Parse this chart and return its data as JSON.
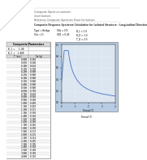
{
  "table_data": [
    [
      0.0,
      0.36
    ],
    [
      0.05,
      0.5
    ],
    [
      0.1,
      0.62
    ],
    [
      0.15,
      0.74
    ],
    [
      0.2,
      0.9
    ],
    [
      0.25,
      0.9
    ],
    [
      0.3,
      0.9
    ],
    [
      0.35,
      0.9
    ],
    [
      0.4,
      0.9
    ],
    [
      0.5,
      0.9
    ],
    [
      0.6,
      0.75
    ],
    [
      0.7,
      0.64
    ],
    [
      0.8,
      0.56
    ],
    [
      0.9,
      0.5
    ],
    [
      1.0,
      0.45
    ],
    [
      1.1,
      0.41
    ],
    [
      1.2,
      0.375
    ],
    [
      1.3,
      0.35
    ],
    [
      1.4,
      0.32
    ],
    [
      1.5,
      0.3
    ],
    [
      1.6,
      0.28
    ],
    [
      1.7,
      0.265
    ],
    [
      1.8,
      0.25
    ],
    [
      1.9,
      0.237
    ],
    [
      2.0,
      0.225
    ],
    [
      2.1,
      0.214
    ],
    [
      2.2,
      0.205
    ],
    [
      2.3,
      0.195
    ],
    [
      2.4,
      0.188
    ],
    [
      2.5,
      0.18
    ],
    [
      3.0,
      0.15
    ],
    [
      4.0,
      0.11
    ]
  ],
  "plot_xlim": [
    0,
    4.0
  ],
  "plot_ylim": [
    0,
    1.0
  ],
  "plot_xticks": [
    0,
    1,
    2,
    3,
    4
  ],
  "plot_yticks": [
    0.0,
    0.2,
    0.4,
    0.6,
    0.8,
    1.0
  ],
  "plot_xlabel": "Period (T)",
  "plot_line_color": "#4472C4",
  "plot_bg_color": "#dce6f1",
  "plot_outer_bg": "#b8cce4",
  "table_bg": "#ffffff",
  "table_header_bg": "#d9d9d9",
  "page_bg": "#ffffff",
  "border_color": "#808080",
  "text_color": "#000000",
  "header_texts": [
    "Composite Spectrum wsheets",
    "sheet buttons",
    "Reference Composite Spectrum Sheet for buttons"
  ],
  "title_text": "Composite Response Spectrum Calculation for Isolated Structure - Longitudinal Direction",
  "params": {
    "Type": "Bridge",
    "Site": "D",
    "SDs": "0.9",
    "SD1": "0.45",
    "B_L": "1.0",
    "B_D": "1.0",
    "T_D": "2.0"
  },
  "table_title": "Composite Parameters",
  "col_headers": [
    "T (sec)",
    "Sa (g)"
  ],
  "sub_params": [
    "B_1 =   1.00",
    "B_2 =  1.000"
  ],
  "fold_size": 38
}
